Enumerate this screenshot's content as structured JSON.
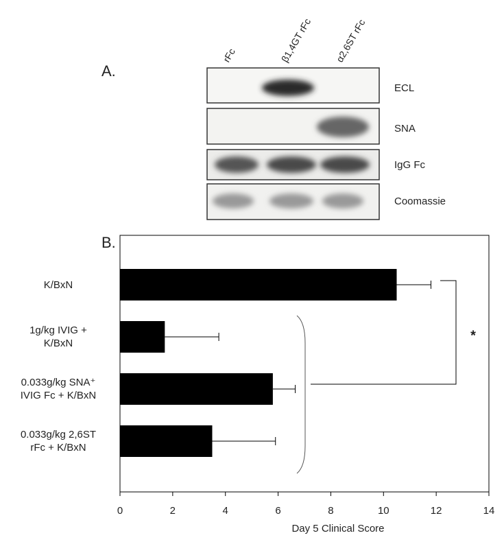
{
  "panel_a": {
    "label": "A.",
    "columns": [
      "rFc",
      "β1,4GT rFc",
      "α2,6ST rFc"
    ],
    "rows": [
      "ECL",
      "SNA",
      "IgG Fc",
      "Coomassie"
    ]
  },
  "chart_data": {
    "type": "bar",
    "orientation": "horizontal",
    "panel_label": "B.",
    "categories": [
      "K/BxN",
      "1g/kg IVIG +\nK/BxN",
      "0.033g/kg SNA⁺\nIVIG Fc + K/BxN",
      "0.033g/kg  2,6ST\nrFc + K/BxN"
    ],
    "values": [
      10.5,
      1.7,
      5.8,
      3.5
    ],
    "errors": [
      1.3,
      2.05,
      0.85,
      2.4
    ],
    "color": "#000000",
    "xlabel": "Day 5 Clinical Score",
    "xlim": [
      0,
      14
    ],
    "xticks": [
      0,
      2,
      4,
      6,
      8,
      10,
      12,
      14
    ],
    "annotation": "*"
  }
}
